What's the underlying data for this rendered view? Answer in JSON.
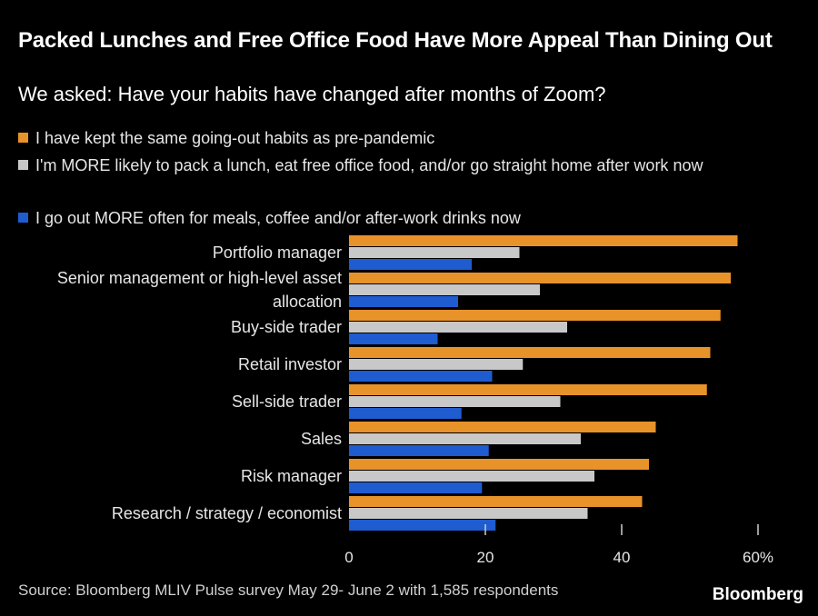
{
  "title": "Packed Lunches and Free Office Food Have More Appeal Than Dining Out",
  "subtitle": "We asked: Have your habits have changed after months of Zoom?",
  "colors": {
    "background": "#000000",
    "orange": "#e8922a",
    "gray": "#c8c8c8",
    "blue": "#1e5ccf"
  },
  "source": "Source: Bloomberg MLIV Pulse survey May 29- June 2 with 1,585 respondents",
  "brand": "Bloomberg",
  "chart_data": {
    "type": "bar",
    "orientation": "horizontal",
    "categories": [
      [
        "Portfolio manager"
      ],
      [
        "Senior management or high-level asset",
        "allocation"
      ],
      [
        "Buy-side trader"
      ],
      [
        "Retail investor"
      ],
      [
        "Sell-side trader"
      ],
      [
        "Sales"
      ],
      [
        "Risk manager"
      ],
      [
        "Research / strategy / economist"
      ]
    ],
    "series": [
      {
        "name": "I have kept the same going-out habits as pre-pandemic",
        "color": "#e8922a",
        "values": [
          57,
          56,
          54.5,
          53,
          52.5,
          45,
          44,
          43
        ]
      },
      {
        "name": "I'm MORE likely to pack a lunch, eat free office food, and/or go straight home after work now",
        "color": "#c8c8c8",
        "values": [
          25,
          28,
          32,
          25.5,
          31,
          34,
          36,
          35
        ]
      },
      {
        "name": "I go out MORE often for meals, coffee and/or after-work drinks now",
        "color": "#1e5ccf",
        "values": [
          18,
          16,
          13,
          21,
          16.5,
          20.5,
          19.5,
          21.5
        ]
      }
    ],
    "xlim": [
      0,
      60
    ],
    "x_ticks": [
      "0",
      "20",
      "40",
      "60%"
    ],
    "x_tick_values": [
      0,
      20,
      40,
      60
    ],
    "legend_position": "top-left",
    "grid": false
  }
}
